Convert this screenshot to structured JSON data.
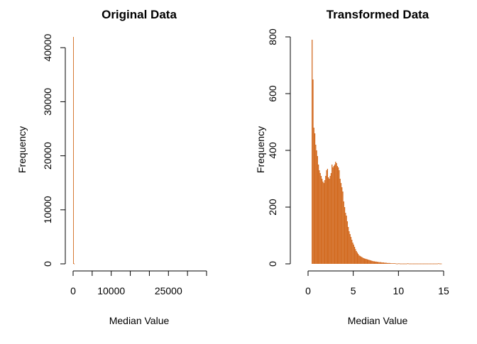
{
  "chart_data": [
    {
      "type": "bar",
      "title": "Original Data",
      "xlabel": "Median Value",
      "ylabel": "Frequency",
      "bar_color": "#D2691E",
      "xlim": [
        0,
        35000
      ],
      "ylim": [
        0,
        42000
      ],
      "x_ticks": [
        0,
        5000,
        10000,
        15000,
        20000,
        25000,
        30000,
        35000
      ],
      "x_tick_labels": [
        "0",
        "",
        "10000",
        "",
        "",
        "25000",
        "",
        ""
      ],
      "y_ticks": [
        0,
        10000,
        20000,
        30000,
        40000
      ],
      "y_tick_labels": [
        "0",
        "10000",
        "20000",
        "30000",
        "40000"
      ],
      "bin_width": 100,
      "bins": [
        {
          "x": 0,
          "y": 42000
        },
        {
          "x": 100,
          "y": 120
        },
        {
          "x": 200,
          "y": 30
        }
      ]
    },
    {
      "type": "bar",
      "title": "Transformed Data",
      "xlabel": "Median Value",
      "ylabel": "Frequency",
      "bar_color": "#D2691E",
      "xlim": [
        0,
        15
      ],
      "ylim": [
        0,
        800
      ],
      "x_ticks": [
        0,
        5,
        10,
        15
      ],
      "x_tick_labels": [
        "0",
        "5",
        "10",
        "15"
      ],
      "y_ticks": [
        0,
        200,
        400,
        600,
        800
      ],
      "y_tick_labels": [
        "0",
        "200",
        "400",
        "600",
        "800"
      ],
      "bin_width": 0.1,
      "bin_start": 0.4,
      "counts": [
        790,
        650,
        480,
        460,
        420,
        400,
        380,
        350,
        330,
        320,
        310,
        300,
        290,
        285,
        295,
        310,
        330,
        335,
        305,
        300,
        310,
        320,
        350,
        340,
        345,
        350,
        360,
        355,
        345,
        340,
        330,
        300,
        285,
        270,
        255,
        220,
        200,
        180,
        170,
        150,
        130,
        115,
        105,
        95,
        85,
        75,
        68,
        60,
        52,
        45,
        40,
        35,
        30,
        28,
        26,
        24,
        22,
        20,
        19,
        18,
        17,
        16,
        15,
        14,
        13,
        12,
        11,
        10,
        9,
        9,
        8,
        8,
        7,
        7,
        6,
        6,
        6,
        5,
        5,
        5,
        4,
        4,
        4,
        3,
        3,
        3,
        3,
        2,
        2,
        2,
        2,
        2,
        2,
        1,
        1,
        1,
        2,
        1,
        1,
        1,
        1,
        1,
        1,
        1,
        1,
        1,
        2,
        1,
        1,
        1,
        1,
        1,
        1,
        1,
        1,
        1,
        1,
        1,
        1,
        1,
        1,
        1,
        1,
        1,
        1,
        1,
        1,
        1,
        1,
        1,
        1,
        1,
        1,
        1,
        1,
        1,
        1,
        1,
        1,
        1,
        2,
        1,
        1,
        1
      ]
    }
  ]
}
